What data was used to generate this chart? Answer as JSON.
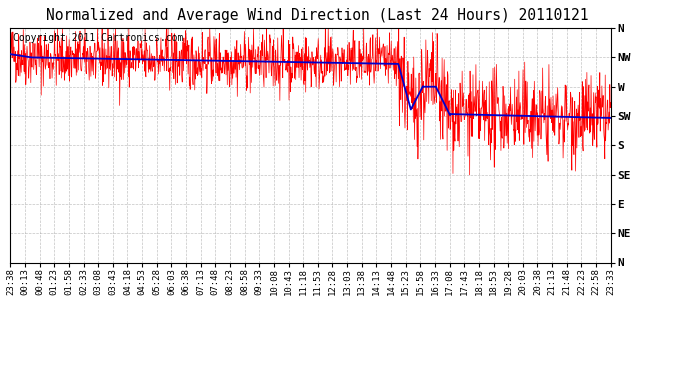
{
  "title": "Normalized and Average Wind Direction (Last 24 Hours) 20110121",
  "copyright": "Copyright 2011 Cartronics.com",
  "bg_color": "#ffffff",
  "plot_bg_color": "#ffffff",
  "grid_color": "#aaaaaa",
  "red_color": "#ff0000",
  "blue_color": "#0000cc",
  "y_labels": [
    "N",
    "NW",
    "W",
    "SW",
    "S",
    "SE",
    "E",
    "NE",
    "N"
  ],
  "y_values": [
    360,
    315,
    270,
    225,
    180,
    135,
    90,
    45,
    0
  ],
  "y_min": 0,
  "y_max": 360,
  "num_points": 1440,
  "title_fontsize": 10.5,
  "copyright_fontsize": 7,
  "tick_fontsize": 6.5,
  "y_tick_fontsize": 8,
  "time_labels": [
    "23:38",
    "00:13",
    "00:48",
    "01:23",
    "01:58",
    "02:33",
    "03:08",
    "03:43",
    "04:18",
    "04:53",
    "05:28",
    "06:03",
    "06:38",
    "07:13",
    "07:48",
    "08:23",
    "08:58",
    "09:33",
    "10:08",
    "10:43",
    "11:18",
    "11:53",
    "12:28",
    "13:03",
    "13:38",
    "14:13",
    "14:48",
    "15:23",
    "15:58",
    "16:33",
    "17:08",
    "17:43",
    "18:18",
    "18:53",
    "19:28",
    "20:03",
    "20:38",
    "21:13",
    "21:48",
    "22:23",
    "22:58",
    "23:33"
  ]
}
